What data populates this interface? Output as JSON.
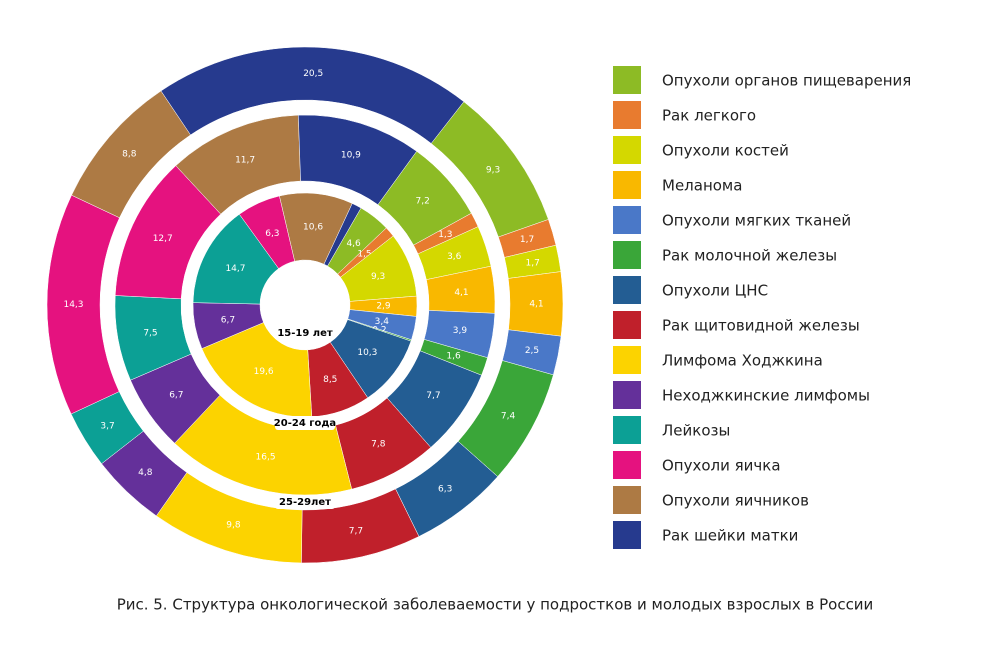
{
  "chart_data": {
    "type": "donut",
    "title": "Рис. 5. Структура онкологической заболеваемости у подростков и молодых взрослых в России",
    "categories": [
      "Опухоли органов пищеварения",
      "Рак легкого",
      "Опухоли костей",
      "Меланома",
      "Опухоли мягких тканей",
      "Рак молочной железы",
      "Опухоли ЦНС",
      "Рак щитовидной железы",
      "Лимфома Ходжкина",
      "Неходжкинские лимфомы",
      "Лейкозы",
      "Опухоли яичка",
      "Опухоли яичников",
      "Рак шейки матки"
    ],
    "colors": [
      "#8dbb25",
      "#e87b2f",
      "#d4d800",
      "#f9b800",
      "#4a78c8",
      "#3aa639",
      "#235d93",
      "#c0202b",
      "#fcd300",
      "#64309a",
      "#0ca095",
      "#e5127f",
      "#ad7a44",
      "#263a8e"
    ],
    "series": [
      {
        "name": "15-19 лет",
        "values": [
          4.6,
          1.5,
          9.3,
          2.9,
          3.4,
          0.2,
          10.3,
          8.5,
          19.6,
          6.7,
          14.7,
          6.3,
          10.6,
          1.4
        ],
        "value_labels": [
          "4,6",
          "1,5",
          "9,3",
          "2,9",
          "3,4",
          "0,2",
          "10,3",
          "8,5",
          "19,6",
          "6,7",
          "14,7",
          "6,3",
          "10,6",
          null
        ]
      },
      {
        "name": "20-24 года",
        "values": [
          7.2,
          1.3,
          3.6,
          4.1,
          3.9,
          1.6,
          7.7,
          7.8,
          16.5,
          6.7,
          7.5,
          12.7,
          11.7,
          10.9
        ],
        "value_labels": [
          "7,2",
          "1,3",
          "3,6",
          "4,1",
          "3,9",
          "1,6",
          "7,7",
          "7,8",
          "16,5",
          "6,7",
          "7,5",
          "12,7",
          "11,7",
          "10,9"
        ]
      },
      {
        "name": "25-29лет",
        "values": [
          9.3,
          1.7,
          1.7,
          4.1,
          2.5,
          7.4,
          6.3,
          7.7,
          9.8,
          4.8,
          3.7,
          14.3,
          8.8,
          20.5
        ],
        "value_labels": [
          "9,3",
          "1,7",
          "1,7",
          "4,1",
          "2,5",
          "7,4",
          "6,3",
          "7,7",
          "9,8",
          "4,8",
          "3,7",
          "14,3",
          "8,8",
          "20,5"
        ]
      }
    ]
  }
}
